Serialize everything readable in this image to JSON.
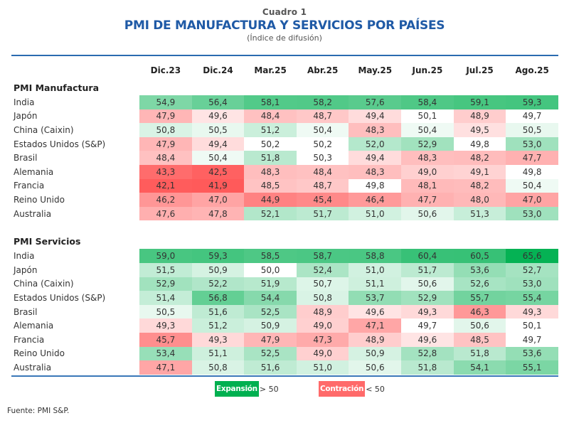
{
  "header": {
    "cuadro": "Cuadro 1",
    "title": "PMI DE MANUFACTURA Y SERVICIOS POR PAÍSES",
    "subtitle": "(Índice de difusión)"
  },
  "columns": [
    "Dic.23",
    "Dic.24",
    "Mar.25",
    "Abr.25",
    "May.25",
    "Jun.25",
    "Jul.25",
    "Ago.25"
  ],
  "sections": [
    {
      "title": "PMI Manufactura",
      "rows": [
        {
          "country": "India",
          "values": [
            "54,9",
            "56,4",
            "58,1",
            "58,2",
            "57,6",
            "58,4",
            "59,1",
            "59,3"
          ]
        },
        {
          "country": "Japón",
          "values": [
            "47,9",
            "49,6",
            "48,4",
            "48,7",
            "49,4",
            "50,1",
            "48,9",
            "49,7"
          ]
        },
        {
          "country": "China (Caixin)",
          "values": [
            "50,8",
            "50,5",
            "51,2",
            "50,4",
            "48,3",
            "50,4",
            "49,5",
            "50,5"
          ]
        },
        {
          "country": "Estados Unidos (S&P)",
          "values": [
            "47,9",
            "49,4",
            "50,2",
            "50,2",
            "52,0",
            "52,9",
            "49,8",
            "53,0"
          ]
        },
        {
          "country": "Brasil",
          "values": [
            "48,4",
            "50,4",
            "51,8",
            "50,3",
            "49,4",
            "48,3",
            "48,2",
            "47,7"
          ]
        },
        {
          "country": "Alemania",
          "values": [
            "43,3",
            "42,5",
            "48,3",
            "48,4",
            "48,3",
            "49,0",
            "49,1",
            "49,8"
          ]
        },
        {
          "country": "Francia",
          "values": [
            "42,1",
            "41,9",
            "48,5",
            "48,7",
            "49,8",
            "48,1",
            "48,2",
            "50,4"
          ]
        },
        {
          "country": "Reino Unido",
          "values": [
            "46,2",
            "47,0",
            "44,9",
            "45,4",
            "46,4",
            "47,7",
            "48,0",
            "47,0"
          ]
        },
        {
          "country": "Australia",
          "values": [
            "47,6",
            "47,8",
            "52,1",
            "51,7",
            "51,0",
            "50,6",
            "51,3",
            "53,0"
          ]
        }
      ]
    },
    {
      "title": "PMI Servicios",
      "rows": [
        {
          "country": "India",
          "values": [
            "59,0",
            "59,3",
            "58,5",
            "58,7",
            "58,8",
            "60,4",
            "60,5",
            "65,6"
          ]
        },
        {
          "country": "Japón",
          "values": [
            "51,5",
            "50,9",
            "50,0",
            "52,4",
            "51,0",
            "51,7",
            "53,6",
            "52,7"
          ]
        },
        {
          "country": "China (Caixin)",
          "values": [
            "52,9",
            "52,2",
            "51,9",
            "50,7",
            "51,1",
            "50,6",
            "52,6",
            "53,0"
          ]
        },
        {
          "country": "Estados Unidos (S&P)",
          "values": [
            "51,4",
            "56,8",
            "54,4",
            "50,8",
            "53,7",
            "52,9",
            "55,7",
            "55,4"
          ]
        },
        {
          "country": "Brasil",
          "values": [
            "50,5",
            "51,6",
            "52,5",
            "48,9",
            "49,6",
            "49,3",
            "46,3",
            "49,3"
          ]
        },
        {
          "country": "Alemania",
          "values": [
            "49,3",
            "51,2",
            "50,9",
            "49,0",
            "47,1",
            "49,7",
            "50,6",
            "50,1"
          ]
        },
        {
          "country": "Francia",
          "values": [
            "45,7",
            "49,3",
            "47,9",
            "47,3",
            "48,9",
            "49,6",
            "48,5",
            "49,7"
          ]
        },
        {
          "country": "Reino Unido",
          "values": [
            "53,4",
            "51,1",
            "52,5",
            "49,0",
            "50,9",
            "52,8",
            "51,8",
            "53,6"
          ]
        },
        {
          "country": "Australia",
          "values": [
            "47,1",
            "50,8",
            "51,6",
            "51,0",
            "50,6",
            "51,8",
            "54,1",
            "55,1"
          ]
        }
      ]
    }
  ],
  "legend": {
    "expansion_label": "Expansión",
    "expansion_rule": "> 50",
    "contraction_label": "Contración",
    "contraction_rule": "< 50"
  },
  "colors": {
    "expansion": "#00b050",
    "contraction": "#ff6a6a",
    "neutral": "#ffffff",
    "title": "#1f5aa6"
  },
  "source": "Fuente: PMI S&P."
}
